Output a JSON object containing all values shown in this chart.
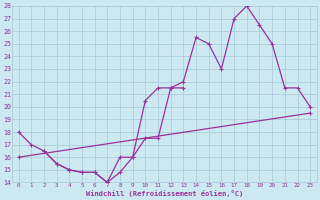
{
  "xlabel": "Windchill (Refroidissement éolien,°C)",
  "xlim": [
    -0.5,
    23.5
  ],
  "ylim": [
    14,
    28
  ],
  "xticks": [
    0,
    1,
    2,
    3,
    4,
    5,
    6,
    7,
    8,
    9,
    10,
    11,
    12,
    13,
    14,
    15,
    16,
    17,
    18,
    19,
    20,
    21,
    22,
    23
  ],
  "yticks": [
    14,
    15,
    16,
    17,
    18,
    19,
    20,
    21,
    22,
    23,
    24,
    25,
    26,
    27,
    28
  ],
  "background_color": "#cce8f0",
  "grid_color": "#a8c8d8",
  "line_color": "#993399",
  "line1_x": [
    0,
    1,
    2,
    3,
    4,
    5,
    6,
    7,
    8,
    9,
    10,
    11,
    12,
    13
  ],
  "line1_y": [
    18,
    17,
    16.5,
    15.5,
    15.0,
    14.8,
    14.8,
    14.0,
    14.8,
    16.0,
    17.5,
    17.5,
    21.5,
    21.5
  ],
  "line2_x": [
    2,
    3,
    4,
    5,
    6,
    7,
    8,
    9,
    10,
    11,
    12,
    13,
    14,
    15,
    16,
    17,
    18,
    19,
    20,
    21,
    22,
    23
  ],
  "line2_y": [
    16.5,
    15.5,
    15.0,
    14.8,
    14.8,
    14.0,
    16.0,
    16.0,
    20.5,
    21.5,
    21.5,
    22.0,
    25.5,
    25.0,
    23.0,
    27.0,
    28.0,
    26.5,
    25.0,
    21.5,
    21.5,
    20.0
  ],
  "line3_x": [
    0,
    23
  ],
  "line3_y": [
    16.0,
    19.5
  ]
}
